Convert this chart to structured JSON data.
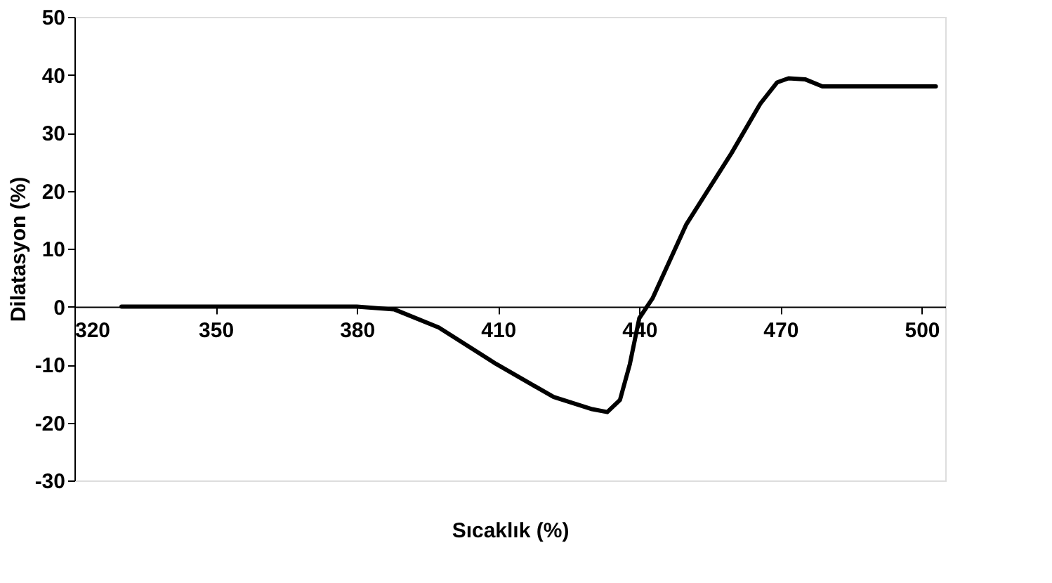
{
  "chart_data": {
    "type": "line",
    "xlabel": "Sıcaklık (%)",
    "ylabel": "Dilatasyon (%)",
    "x": [
      330,
      350,
      380,
      388,
      397.4,
      409.6,
      421.8,
      430,
      433.2,
      435.9,
      438,
      440,
      442.8,
      450,
      459.6,
      465.7,
      469.3,
      471.7,
      475.3,
      478.9,
      503
    ],
    "series": [
      {
        "color": "#000000",
        "values": [
          0,
          0,
          0,
          -0.5,
          -3.6,
          -9.9,
          -15.6,
          -17.7,
          -18.2,
          -16.1,
          -9.9,
          -2,
          1.4,
          14.2,
          26.5,
          35,
          38.7,
          39.4,
          39.2,
          38,
          38
        ]
      }
    ],
    "xlim": [
      320,
      505
    ],
    "xticks": [
      320,
      350,
      380,
      410,
      440,
      470,
      500
    ],
    "ylim": [
      -30,
      50
    ],
    "yticks": [
      -30,
      -20,
      -10,
      0,
      10,
      20,
      30,
      40,
      50
    ],
    "grid": false,
    "marker": "none",
    "line_style": "solid"
  }
}
